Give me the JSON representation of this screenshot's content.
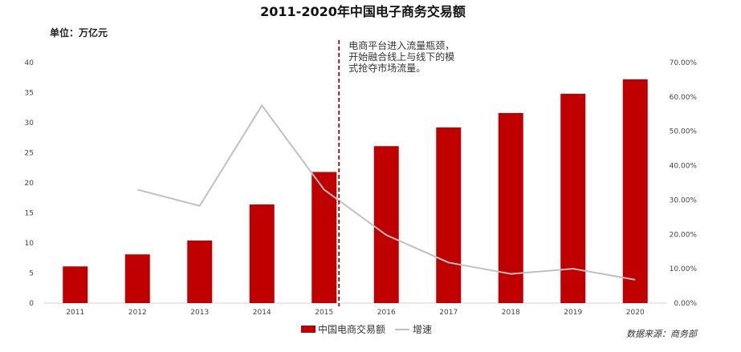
{
  "chart_data": {
    "type": "bar",
    "title": "2011-2020年中国电子商务交易额",
    "unit_label": "单位：万亿元",
    "categories": [
      "2011",
      "2012",
      "2013",
      "2014",
      "2015",
      "2016",
      "2017",
      "2018",
      "2019",
      "2020"
    ],
    "series": [
      {
        "name": "中国电商交易额",
        "type": "bar",
        "axis": "left",
        "values": [
          6.1,
          8.1,
          10.4,
          16.4,
          21.8,
          26.1,
          29.2,
          31.6,
          34.8,
          37.2
        ]
      },
      {
        "name": "增速",
        "type": "line",
        "axis": "right",
        "values": [
          null,
          0.33,
          0.283,
          0.575,
          0.33,
          0.198,
          0.118,
          0.085,
          0.1,
          0.068
        ]
      }
    ],
    "ylim_left": [
      0,
      40
    ],
    "yticks_left": [
      "0",
      "5",
      "10",
      "15",
      "20",
      "25",
      "30",
      "35",
      "40"
    ],
    "ylim_right": [
      0,
      0.7
    ],
    "yticks_right": [
      "0.00%",
      "10.00%",
      "20.00%",
      "30.00%",
      "40.00%",
      "50.00%",
      "60.00%",
      "70.00%"
    ],
    "annotation": {
      "category": "2015",
      "lines": [
        "电商平台进入流量瓶颈，",
        "开始融合线上与线下的模",
        "式抢夺市场流量。"
      ]
    },
    "legend_position": "bottom",
    "source": "数据来源：商务部",
    "colors": {
      "bar": "#c00000",
      "line": "#c0c0c0",
      "annotation_line": "#a00000"
    }
  }
}
